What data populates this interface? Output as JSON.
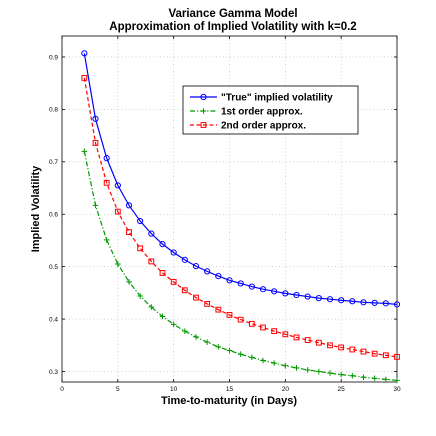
{
  "chart_data": {
    "type": "line",
    "title": "Variance Gamma Model",
    "subtitle": "Approximation of Implied Volatility with k=0.2",
    "xlabel": "Time-to-maturity (in Days)",
    "ylabel": "Implied Volatility",
    "xlim": [
      0,
      30
    ],
    "ylim": [
      0.28,
      0.94
    ],
    "xticks": [
      0,
      5,
      10,
      15,
      20,
      25,
      30
    ],
    "xtick_labels": [
      "0",
      "5",
      "10",
      "15",
      "20",
      "25",
      "30"
    ],
    "yticks": [
      0.3,
      0.4,
      0.5,
      0.6,
      0.7,
      0.8,
      0.9
    ],
    "ytick_labels": [
      "0.3",
      "0.4",
      "0.5",
      "0.6",
      "0.7",
      "0.8",
      "0.9"
    ],
    "grid": true,
    "legend_position": "upper-right",
    "x": [
      2,
      3,
      4,
      5,
      6,
      7,
      8,
      9,
      10,
      11,
      12,
      13,
      14,
      15,
      16,
      17,
      18,
      19,
      20,
      21,
      22,
      23,
      24,
      25,
      26,
      27,
      28,
      29,
      30
    ],
    "series": [
      {
        "name": "\"True\" implied volatility",
        "color": "#0000ff",
        "line_style": "solid",
        "marker": "circle",
        "values": [
          0.907,
          0.782,
          0.707,
          0.655,
          0.617,
          0.587,
          0.563,
          0.543,
          0.527,
          0.513,
          0.501,
          0.491,
          0.482,
          0.474,
          0.468,
          0.462,
          0.457,
          0.453,
          0.449,
          0.446,
          0.443,
          0.44,
          0.438,
          0.436,
          0.434,
          0.432,
          0.431,
          0.43,
          0.428
        ]
      },
      {
        "name": "1st order approx.",
        "color": "#009900",
        "line_style": "dashdot",
        "marker": "plus",
        "values": [
          0.72,
          0.617,
          0.551,
          0.505,
          0.471,
          0.444,
          0.423,
          0.405,
          0.39,
          0.377,
          0.366,
          0.356,
          0.347,
          0.34,
          0.333,
          0.327,
          0.321,
          0.316,
          0.311,
          0.307,
          0.303,
          0.3,
          0.297,
          0.294,
          0.292,
          0.289,
          0.287,
          0.285,
          0.283
        ]
      },
      {
        "name": "2nd order approx.",
        "color": "#ff0000",
        "line_style": "dashed",
        "marker": "square",
        "values": [
          0.86,
          0.736,
          0.66,
          0.605,
          0.566,
          0.535,
          0.51,
          0.488,
          0.471,
          0.455,
          0.441,
          0.429,
          0.418,
          0.408,
          0.399,
          0.391,
          0.384,
          0.377,
          0.371,
          0.365,
          0.36,
          0.355,
          0.35,
          0.346,
          0.342,
          0.338,
          0.334,
          0.331,
          0.328
        ]
      }
    ]
  }
}
